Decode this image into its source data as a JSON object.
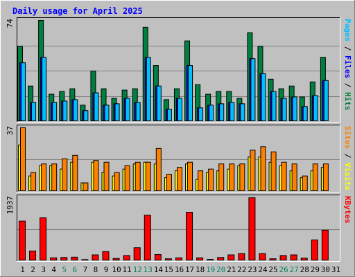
{
  "chart_data": {
    "type": "bar",
    "title": "Daily usage for April 2025",
    "categories": [
      "1",
      "2",
      "3",
      "4",
      "5",
      "6",
      "7",
      "8",
      "9",
      "10",
      "11",
      "12",
      "13",
      "14",
      "15",
      "16",
      "17",
      "18",
      "19",
      "20",
      "21",
      "22",
      "23",
      "24",
      "25",
      "26",
      "27",
      "28",
      "29",
      "30",
      "31"
    ],
    "weekend_days": [
      "5",
      "6",
      "12",
      "13",
      "19",
      "20",
      "26",
      "27"
    ],
    "panels": [
      {
        "id": "hits-files-pages",
        "max_label": "74",
        "ylim": [
          0,
          74
        ],
        "ylabel_parts": [
          {
            "text": "Pages",
            "color": "#00c0ff"
          },
          {
            "text": " / ",
            "color": "#000000"
          },
          {
            "text": "Files",
            "color": "#0000ff"
          },
          {
            "text": " / ",
            "color": "#000000"
          },
          {
            "text": "Hits",
            "color": "#008040"
          }
        ],
        "series": [
          {
            "name": "Hits",
            "color": "#008040",
            "values": [
              55,
              26,
              74,
              20,
              22,
              24,
              12,
              37,
              24,
              17,
              23,
              24,
              69,
              41,
              16,
              24,
              59,
              27,
              20,
              22,
              22,
              17,
              65,
              55,
              31,
              24,
              26,
              18,
              29,
              47,
              0
            ]
          },
          {
            "name": "Files",
            "color": "#0000ff",
            "values": [
              43,
              14,
              47,
              14,
              15,
              16,
              8,
              21,
              12,
              13,
              17,
              14,
              47,
              26,
              9,
              17,
              41,
              10,
              12,
              13,
              14,
              13,
              46,
              35,
              22,
              17,
              18,
              11,
              19,
              30,
              0
            ]
          },
          {
            "name": "Pages",
            "color": "#00c0ff",
            "values": [
              43,
              14,
              47,
              14,
              15,
              16,
              8,
              21,
              12,
              13,
              17,
              14,
              47,
              26,
              9,
              17,
              41,
              10,
              12,
              13,
              14,
              13,
              46,
              35,
              22,
              17,
              18,
              11,
              19,
              30,
              0
            ]
          }
        ]
      },
      {
        "id": "visits-sites",
        "max_label": "37",
        "ylim": [
          0,
          37
        ],
        "ylabel_parts": [
          {
            "text": "Sites",
            "color": "#ff8000"
          },
          {
            "text": " / ",
            "color": "#000000"
          },
          {
            "text": "Visits",
            "color": "#ffff00"
          }
        ],
        "series": [
          {
            "name": "Visits",
            "color": "#ffff00",
            "values": [
              27,
              9,
              15,
              15,
              13,
              17,
              5,
              17,
              11,
              9,
              13,
              16,
              17,
              16,
              8,
              12,
              16,
              7,
              11,
              12,
              13,
              15,
              20,
              20,
              17,
              15,
              12,
              8,
              12,
              14,
              0
            ]
          },
          {
            "name": "Sites",
            "color": "#ff8000",
            "values": [
              37,
              11,
              16,
              16,
              19,
              21,
              5,
              18,
              17,
              11,
              15,
              17,
              17,
              25,
              10,
              14,
              17,
              12,
              13,
              16,
              16,
              16,
              24,
              26,
              23,
              17,
              16,
              9,
              16,
              16,
              0
            ]
          }
        ]
      },
      {
        "id": "kbytes",
        "max_label": "1937",
        "ylim": [
          0,
          1937
        ],
        "ylabel_parts": [
          {
            "text": "KBytes",
            "color": "#ff0000"
          }
        ],
        "series": [
          {
            "name": "KBytes",
            "color": "#ff0000",
            "values": [
              1220,
              300,
              1320,
              90,
              100,
              110,
              35,
              180,
              280,
              70,
              160,
              400,
              1400,
              190,
              60,
              90,
              1490,
              90,
              40,
              100,
              180,
              220,
              1937,
              220,
              60,
              160,
              180,
              80,
              640,
              940,
              0
            ]
          }
        ]
      }
    ]
  }
}
